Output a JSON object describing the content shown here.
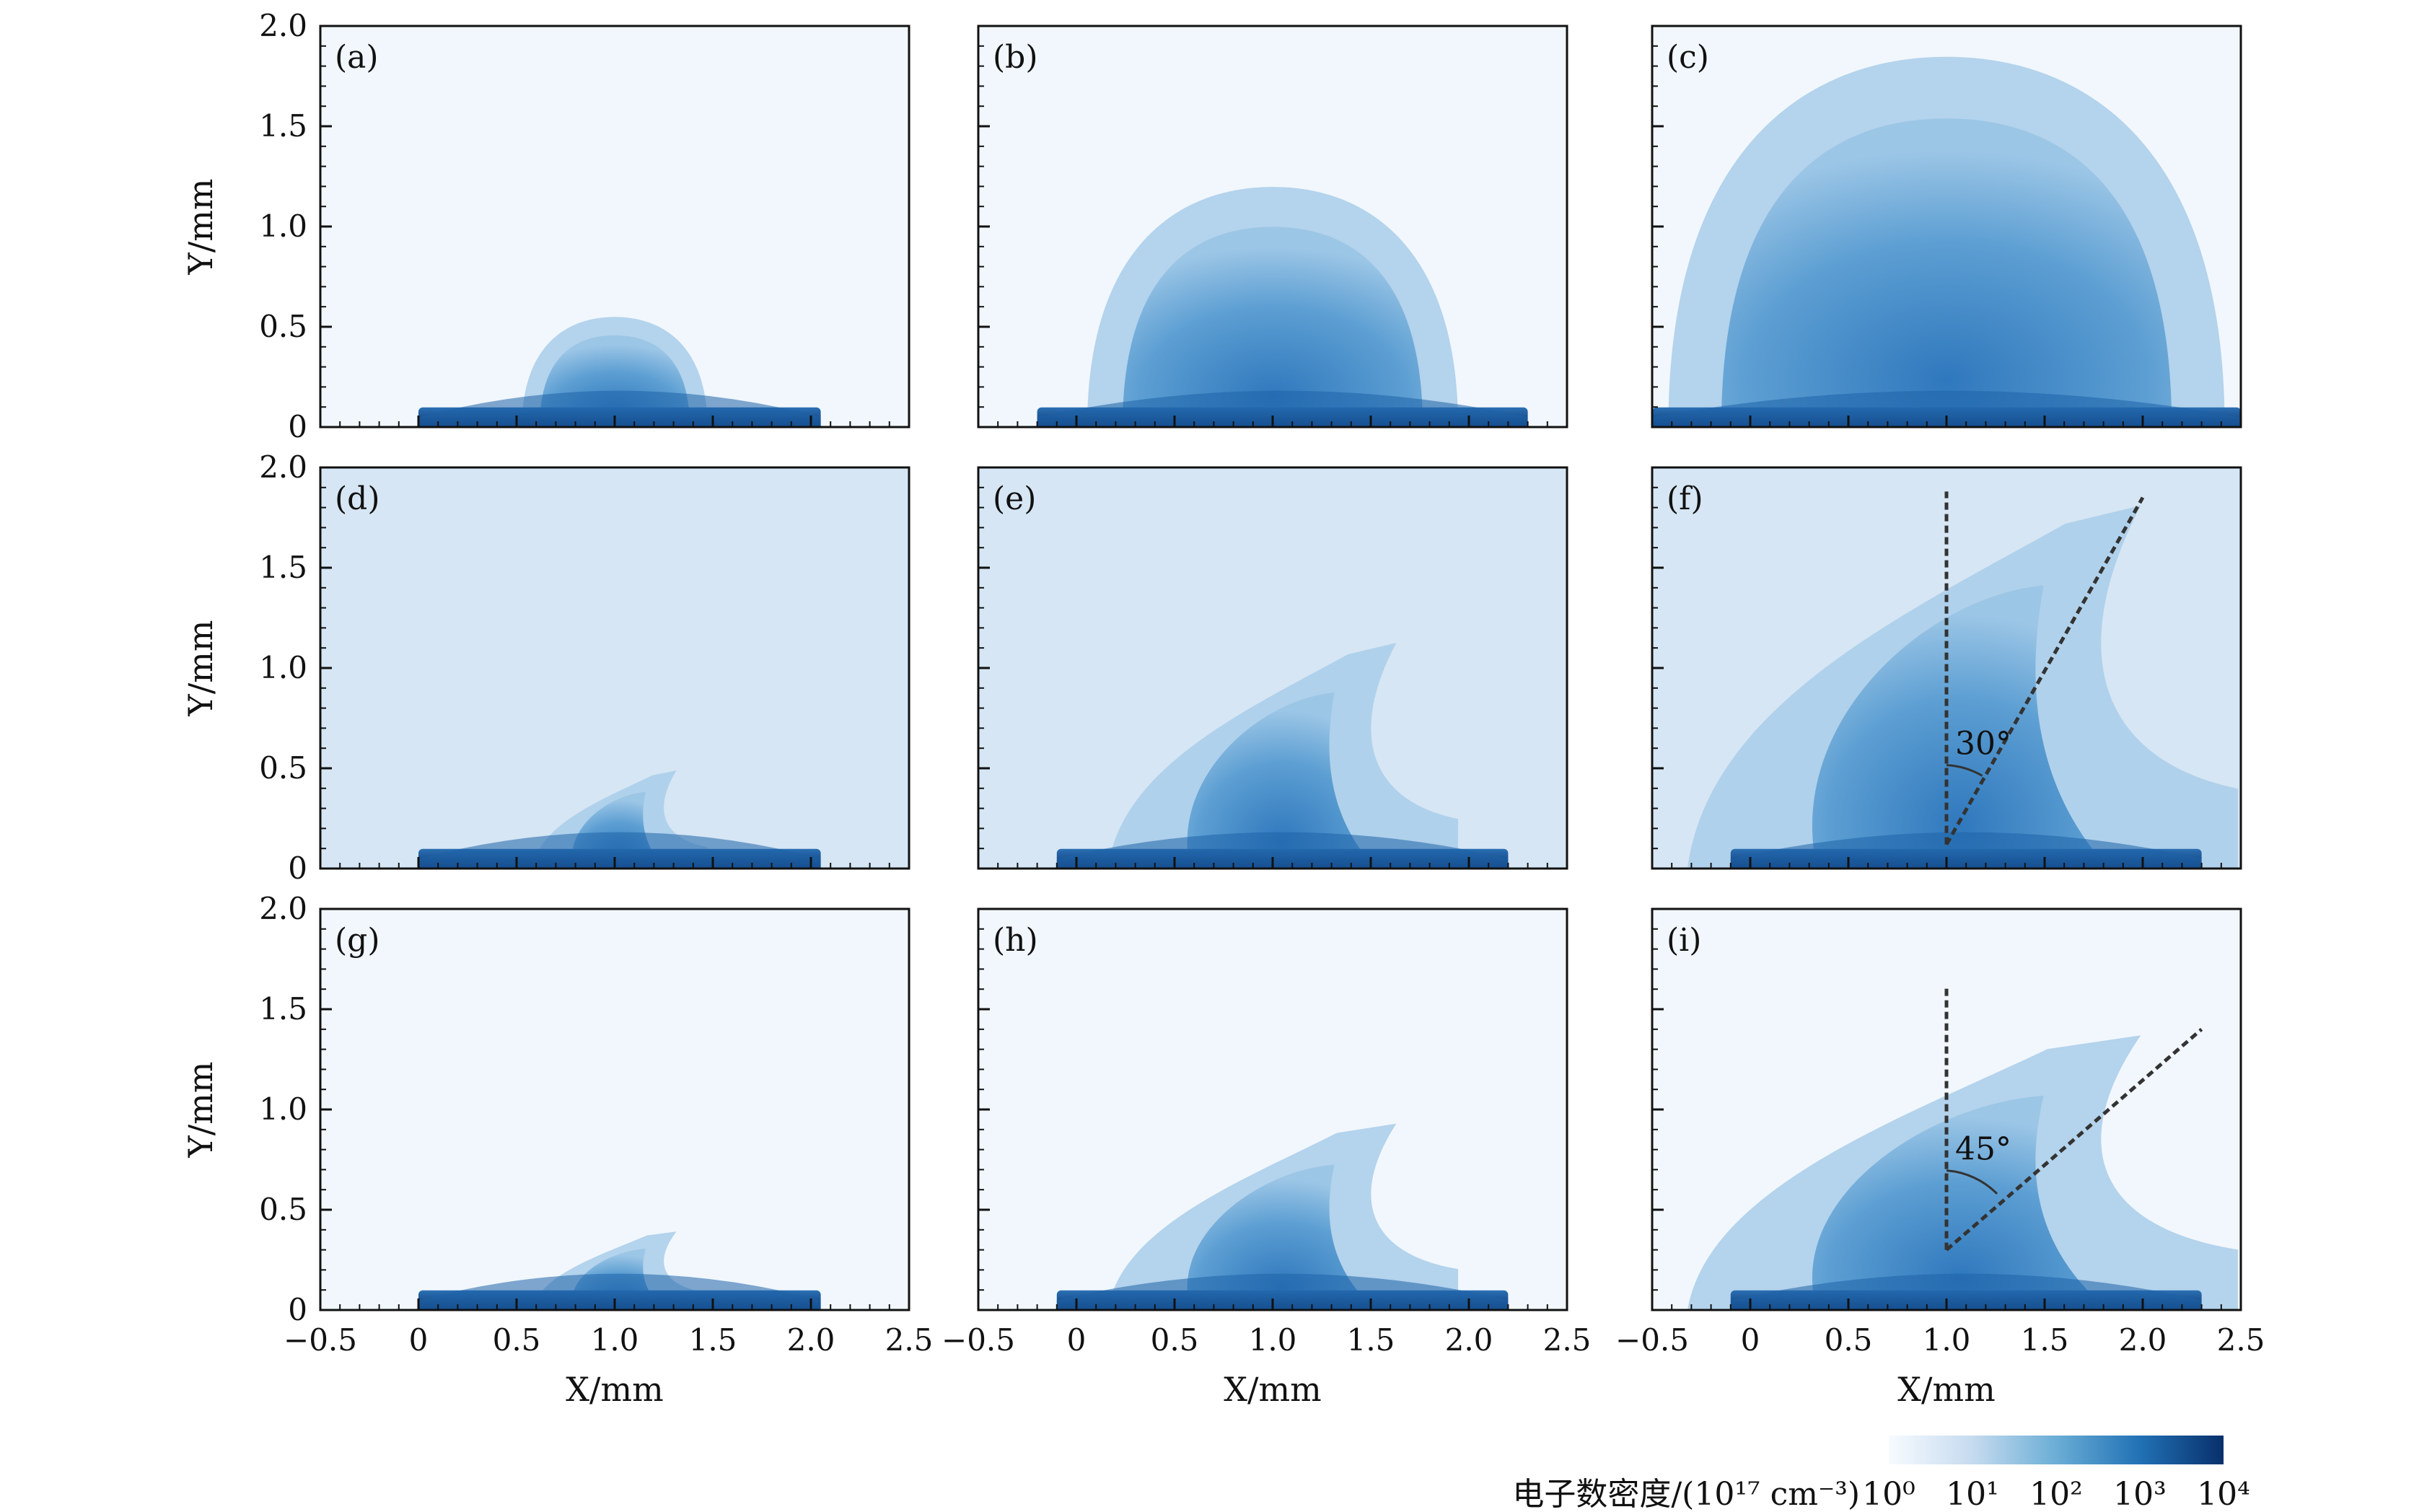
{
  "chart_data": {
    "type": "heatmap",
    "description_units": "X and Y in mm",
    "x_axis": {
      "label": "X/mm",
      "ticks": [
        "−0.5",
        "0",
        "0.5",
        "1.0",
        "1.5",
        "2.0",
        "2.5"
      ],
      "tick_values": [
        -0.5,
        0,
        0.5,
        1.0,
        1.5,
        2.0,
        2.5
      ],
      "range": [
        -0.5,
        2.5
      ]
    },
    "y_axis": {
      "label": "Y/mm",
      "ticks": [
        "0",
        "0.5",
        "1.0",
        "1.5",
        "2.0"
      ],
      "tick_values": [
        0,
        0.5,
        1.0,
        1.5,
        2.0
      ],
      "range": [
        0,
        2.0
      ]
    },
    "colorbar": {
      "label": "电子数密度/(10¹⁷ cm⁻³)",
      "scale": "log",
      "range": [
        1,
        10000
      ],
      "ticks": [
        "10⁰",
        "10¹",
        "10²",
        "10³",
        "10⁴"
      ],
      "tick_values": [
        1,
        10,
        100,
        1000,
        10000
      ],
      "colors": [
        "#f7fbff",
        "#c6dbef",
        "#6baed6",
        "#2171b5",
        "#08306b"
      ]
    },
    "panels": [
      {
        "tag": "(a)",
        "row": 0,
        "col": 0,
        "base": [
          0.0,
          2.05
        ],
        "dome_center": 1.0,
        "dome_half_width": 0.45,
        "dome_height": 0.55,
        "tilt_deg": 0
      },
      {
        "tag": "(b)",
        "row": 0,
        "col": 1,
        "base": [
          -0.2,
          2.3
        ],
        "dome_center": 1.0,
        "dome_half_width": 0.9,
        "dome_height": 1.2,
        "tilt_deg": 0
      },
      {
        "tag": "(c)",
        "row": 0,
        "col": 2,
        "base": [
          -0.5,
          2.5
        ],
        "dome_center": 1.0,
        "dome_half_width": 1.35,
        "dome_height": 1.85,
        "tilt_deg": 0
      },
      {
        "tag": "(d)",
        "row": 1,
        "col": 0,
        "base": [
          0.0,
          2.05
        ],
        "dome_center": 1.0,
        "dome_half_width": 0.35,
        "dome_height": 0.5,
        "tilt_deg": 30
      },
      {
        "tag": "(e)",
        "row": 1,
        "col": 1,
        "base": [
          -0.1,
          2.2
        ],
        "dome_center": 1.0,
        "dome_half_width": 0.7,
        "dome_height": 1.15,
        "tilt_deg": 30
      },
      {
        "tag": "(f)",
        "row": 1,
        "col": 2,
        "base": [
          -0.1,
          2.3
        ],
        "dome_center": 1.0,
        "dome_half_width": 1.1,
        "dome_height": 1.85,
        "tilt_deg": 30,
        "angle_label": "30°"
      },
      {
        "tag": "(g)",
        "row": 2,
        "col": 0,
        "base": [
          0.0,
          2.05
        ],
        "dome_center": 1.0,
        "dome_half_width": 0.35,
        "dome_height": 0.4,
        "tilt_deg": 45
      },
      {
        "tag": "(h)",
        "row": 2,
        "col": 1,
        "base": [
          -0.1,
          2.2
        ],
        "dome_center": 1.0,
        "dome_half_width": 0.7,
        "dome_height": 0.95,
        "tilt_deg": 45
      },
      {
        "tag": "(i)",
        "row": 2,
        "col": 2,
        "base": [
          -0.1,
          2.3
        ],
        "dome_center": 1.0,
        "dome_half_width": 1.1,
        "dome_height": 1.4,
        "tilt_deg": 45,
        "angle_label": "45°"
      }
    ]
  }
}
